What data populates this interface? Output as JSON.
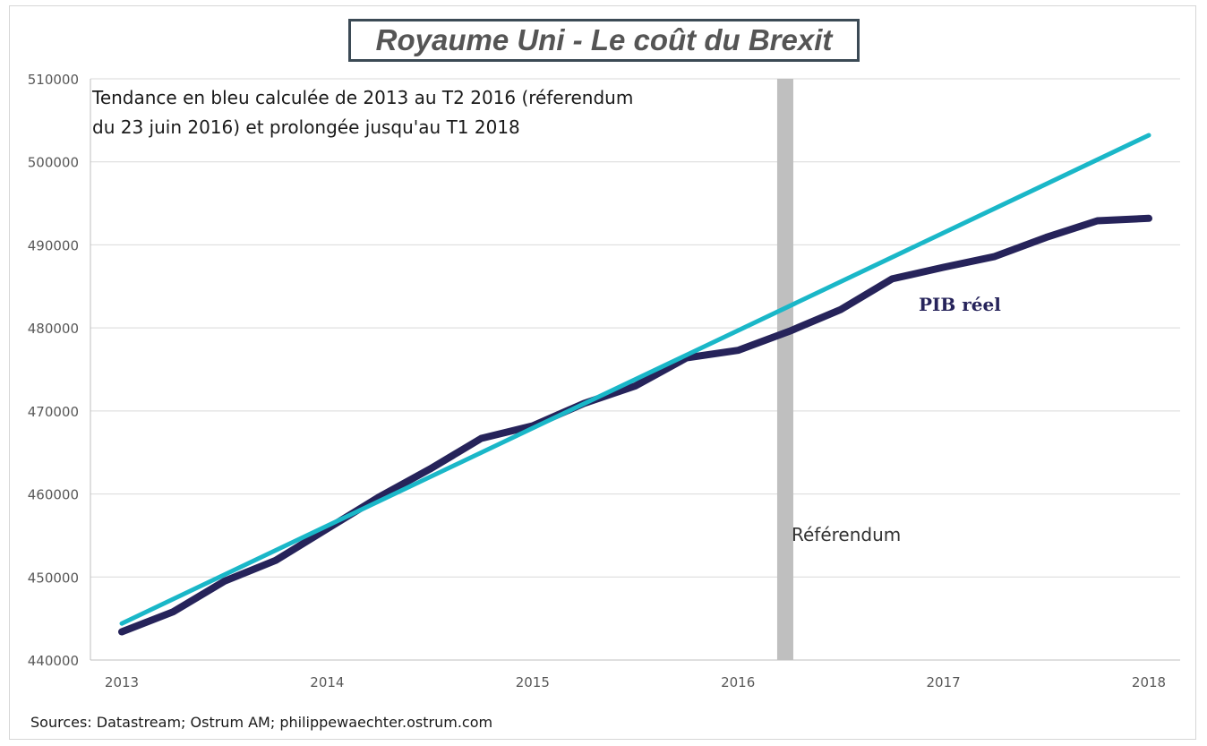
{
  "chart_data": {
    "type": "line",
    "title": "Royaume Uni - Le coût du Brexit",
    "note_lines": [
      "Tendance en bleu calculée de 2013 au T2 2016 (réferendum",
      "du 23 juin 2016) et prolongée jusqu'au T1 2018"
    ],
    "x_ticks": [
      "2013",
      "2014",
      "2015",
      "2016",
      "2017",
      "2018"
    ],
    "y_ticks": [
      "440000",
      "450000",
      "460000",
      "470000",
      "480000",
      "490000",
      "500000",
      "510000"
    ],
    "ylim": [
      440000,
      510000
    ],
    "xlim": [
      2013,
      2018
    ],
    "grid": true,
    "series": [
      {
        "name": "PIB réel",
        "color": "#26235a",
        "points": [
          [
            2013.0,
            443400
          ],
          [
            2013.25,
            445800
          ],
          [
            2013.5,
            449500
          ],
          [
            2013.75,
            452000
          ],
          [
            2014.0,
            455800
          ],
          [
            2014.25,
            459600
          ],
          [
            2014.5,
            463000
          ],
          [
            2014.75,
            466700
          ],
          [
            2015.0,
            468200
          ],
          [
            2015.25,
            470900
          ],
          [
            2015.5,
            473000
          ],
          [
            2015.75,
            476400
          ],
          [
            2016.0,
            477300
          ],
          [
            2016.25,
            479600
          ],
          [
            2016.5,
            482200
          ],
          [
            2016.75,
            485900
          ],
          [
            2017.0,
            487300
          ],
          [
            2017.25,
            488600
          ],
          [
            2017.5,
            490900
          ],
          [
            2017.75,
            492900
          ],
          [
            2018.0,
            493200
          ]
        ]
      },
      {
        "name": "",
        "color": "#1ab7c8",
        "points": [
          [
            2013.0,
            444400
          ],
          [
            2018.0,
            503200
          ]
        ]
      }
    ],
    "referendum": {
      "x": 2016.23,
      "label": "Référendum",
      "color": "#bfbfbf"
    }
  },
  "source": "Sources: Datastream; Ostrum AM; philippewaechter.ostrum.com"
}
